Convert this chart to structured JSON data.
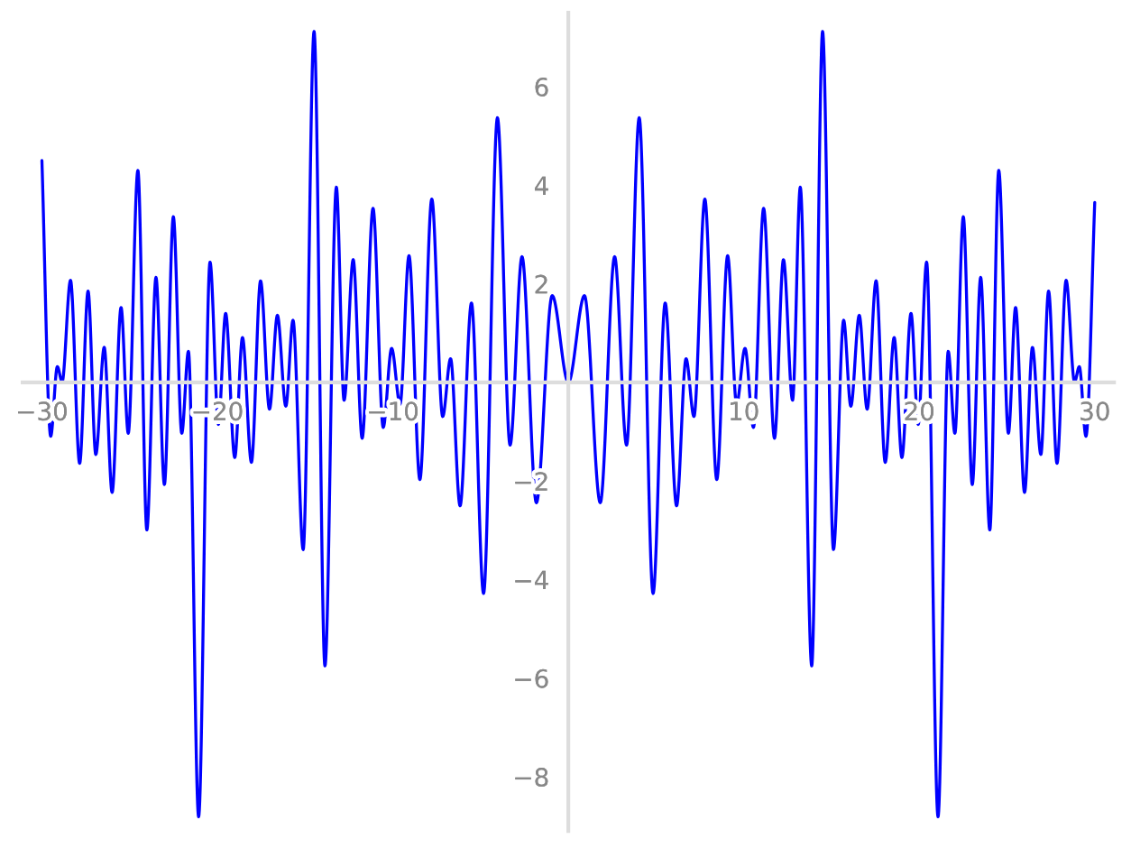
{
  "chart_data": {
    "type": "line",
    "xlim": [
      -31.1,
      31.1
    ],
    "ylim": [
      -9.1,
      7.5
    ],
    "xticks": [
      {
        "value": -30,
        "label": "−30"
      },
      {
        "value": -20,
        "label": "−20"
      },
      {
        "value": -10,
        "label": "−10"
      },
      10,
      20,
      30
    ],
    "yticks": [
      {
        "value": -8,
        "label": "−8"
      },
      {
        "value": -6,
        "label": "−6"
      },
      {
        "value": -4,
        "label": "−4"
      },
      {
        "value": -2,
        "label": "−2"
      },
      2,
      4,
      6
    ],
    "grid": false,
    "marker": "none",
    "line_style": "solid",
    "series": [
      {
        "color": "#0000ff",
        "x": [
          -30,
          -29.5,
          -29.12,
          -28.85,
          -28.37,
          -27.85,
          -27.37,
          -26.93,
          -26.45,
          -26.0,
          -25.49,
          -25.08,
          -24.53,
          -24.02,
          -23.5,
          -23.02,
          -22.51,
          -22.03,
          -21.65,
          -21.07,
          -20.42,
          -19.94,
          -19.53,
          -19.01,
          -18.57,
          -18.06,
          -17.54,
          -17.03,
          -16.58,
          -16.1,
          -15.69,
          -15.11,
          -14.49,
          -13.87,
          -13.22,
          -12.78,
          -12.26,
          -11.75,
          -11.13,
          -10.55,
          -10.07,
          -9.59,
          -9.08,
          -8.46,
          -7.78,
          -7.16,
          -6.71,
          -6.17,
          -5.52,
          -4.83,
          -4.04,
          -3.32,
          -2.64,
          -1.82,
          -0.92,
          0,
          0.92,
          1.82,
          2.64,
          3.32,
          4.04,
          4.83,
          5.52,
          6.17,
          6.71,
          7.16,
          7.78,
          8.46,
          9.08,
          9.59,
          10.07,
          10.55,
          11.13,
          11.75,
          12.26,
          12.78,
          13.22,
          13.87,
          14.49,
          15.11,
          15.69,
          16.1,
          16.58,
          17.03,
          17.54,
          18.06,
          18.57,
          19.01,
          19.53,
          19.94,
          20.42,
          21.07,
          21.65,
          22.03,
          22.51,
          23.02,
          23.5,
          24.02,
          24.53,
          25.08,
          25.49,
          26.0,
          26.45,
          26.93,
          27.37,
          27.85,
          28.37,
          28.85,
          29.12,
          29.5,
          30
        ],
        "values": [
          4.5,
          -1.09,
          0.32,
          0.01,
          2.07,
          -1.64,
          1.85,
          -1.46,
          0.71,
          -2.23,
          1.52,
          -1.03,
          4.3,
          -2.99,
          2.13,
          -2.07,
          3.36,
          -1.03,
          0.63,
          -8.81,
          2.44,
          -0.85,
          1.4,
          -1.52,
          0.91,
          -1.62,
          2.06,
          -0.54,
          1.36,
          -0.48,
          1.26,
          -3.39,
          7.12,
          -5.75,
          3.96,
          -0.36,
          2.49,
          -1.13,
          3.53,
          -0.91,
          0.69,
          -0.44,
          2.57,
          -1.97,
          3.72,
          -0.69,
          0.48,
          -2.5,
          1.61,
          -4.28,
          5.37,
          -1.27,
          2.55,
          -2.44,
          1.76,
          0.0,
          1.76,
          -2.44,
          2.55,
          -1.27,
          5.37,
          -4.28,
          1.61,
          -2.5,
          0.48,
          -0.69,
          3.72,
          -1.97,
          2.57,
          -0.44,
          0.69,
          -0.91,
          3.53,
          -1.13,
          2.49,
          -0.36,
          3.96,
          -5.75,
          7.12,
          -3.39,
          1.26,
          -0.48,
          1.36,
          -0.54,
          2.06,
          -1.62,
          0.91,
          -1.52,
          1.4,
          -0.85,
          2.44,
          -8.81,
          0.63,
          -1.03,
          3.36,
          -2.07,
          2.13,
          -2.99,
          4.3,
          -1.03,
          1.52,
          -2.23,
          0.71,
          -1.46,
          1.85,
          -1.64,
          2.07,
          0.01,
          0.32,
          -1.09,
          3.65
        ]
      }
    ]
  }
}
